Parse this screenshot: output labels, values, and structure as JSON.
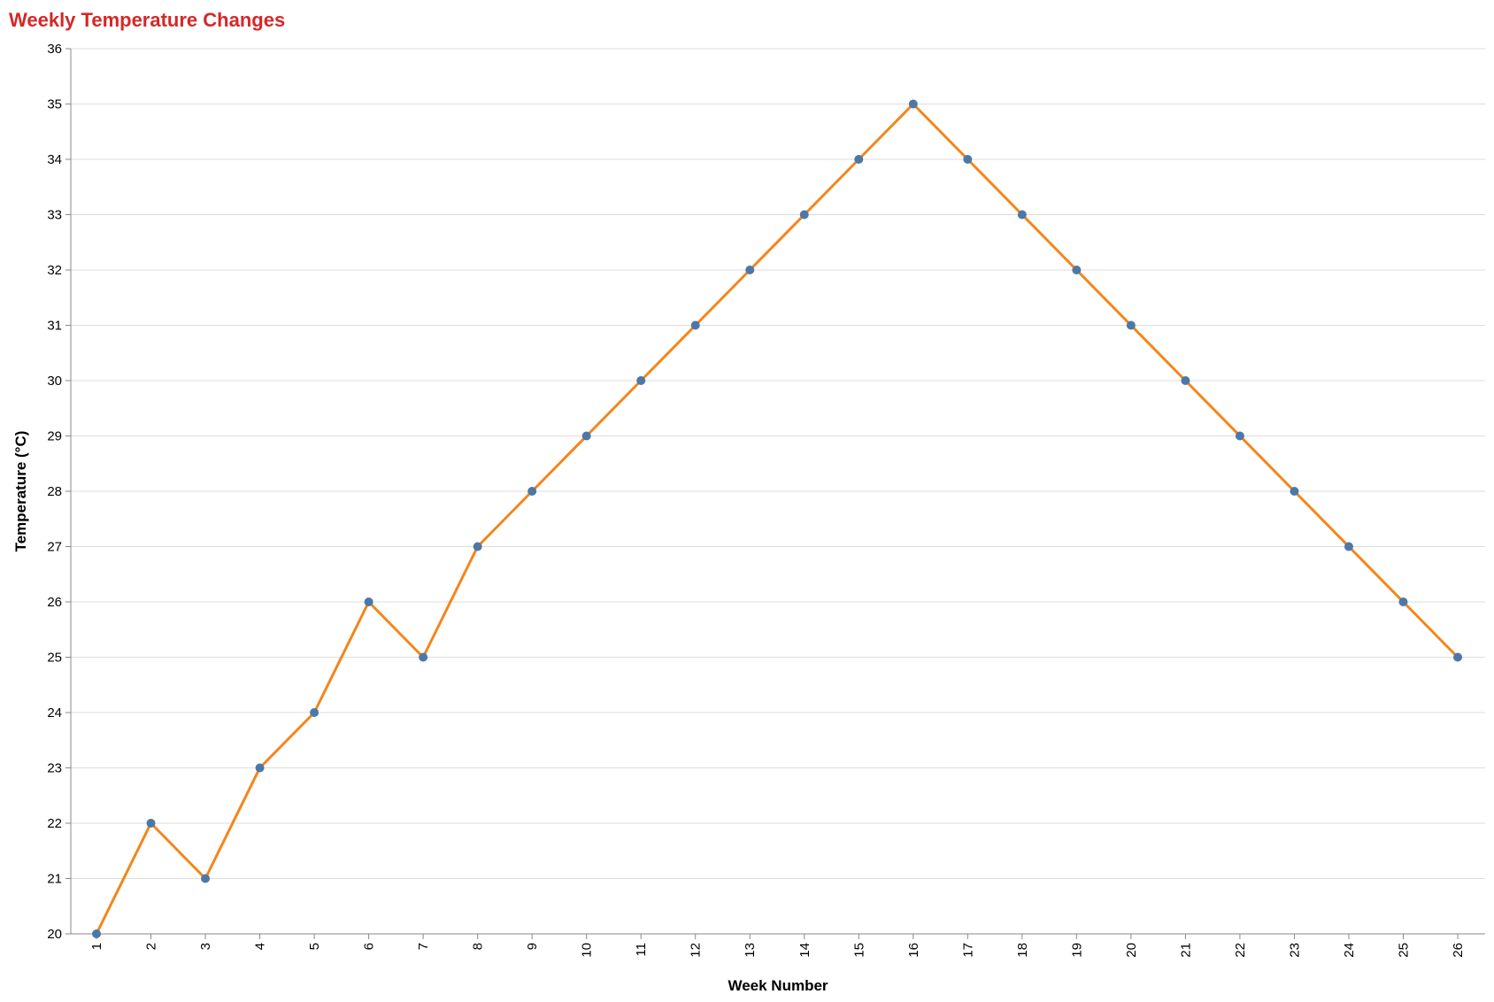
{
  "chart_data": {
    "type": "line",
    "title": "Weekly Temperature Changes",
    "xlabel": "Week Number",
    "ylabel": "Temperature (°C)",
    "x": [
      1,
      2,
      3,
      4,
      5,
      6,
      7,
      8,
      9,
      10,
      11,
      12,
      13,
      14,
      15,
      16,
      17,
      18,
      19,
      20,
      21,
      22,
      23,
      24,
      25,
      26
    ],
    "series": [
      {
        "values": [
          20,
          22,
          21,
          23,
          24,
          26,
          25,
          27,
          28,
          29,
          30,
          31,
          32,
          33,
          34,
          35,
          34,
          33,
          32,
          31,
          30,
          29,
          28,
          27,
          26,
          25
        ]
      }
    ],
    "ylim": [
      20,
      36
    ],
    "y_ticks": [
      20,
      21,
      22,
      23,
      24,
      25,
      26,
      27,
      28,
      29,
      30,
      31,
      32,
      33,
      34,
      35,
      36
    ],
    "grid": "horizontal",
    "legend": "none",
    "colors": {
      "title": "#d62728",
      "line": "#f58518",
      "point": "#4c78a8",
      "grid": "#dddddd",
      "axis": "#888888"
    }
  }
}
